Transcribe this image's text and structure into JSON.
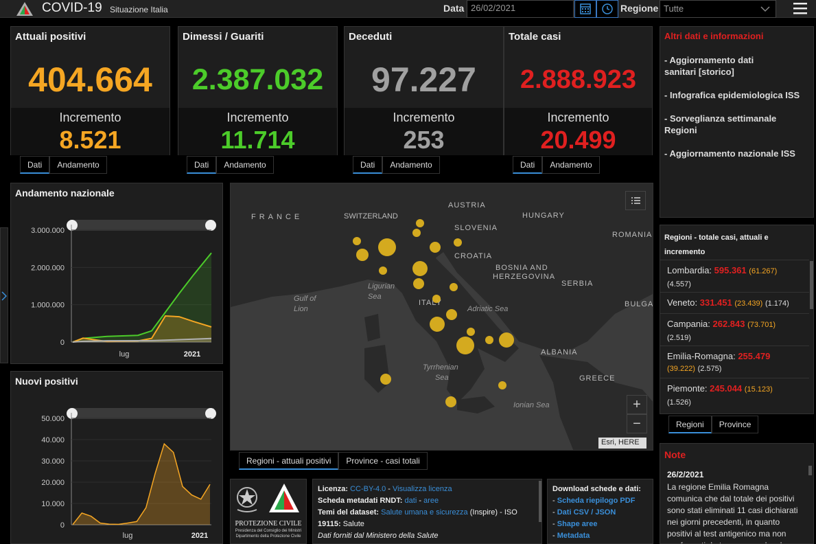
{
  "header": {
    "title": "COVID-19",
    "subtitle": "Situazione Italia",
    "date_label": "Data",
    "date_value": "26/02/2021",
    "region_label": "Regione",
    "region_value": "Tutte"
  },
  "cards": [
    {
      "title": "Attuali positivi",
      "value": "404.664",
      "inc_label": "Incremento",
      "inc_value": "8.521",
      "color": "#f5a623"
    },
    {
      "title": "Dimessi / Guariti",
      "value": "2.387.032",
      "inc_label": "Incremento",
      "inc_value": "11.714",
      "color": "#4ccc2a"
    },
    {
      "title": "Deceduti",
      "value": "97.227",
      "inc_label": "Incremento",
      "inc_value": "253",
      "color": "#a0a0a0"
    },
    {
      "title": "Totale casi",
      "value": "2.888.923",
      "inc_label": "Incremento",
      "inc_value": "20.499",
      "color": "#e02020"
    }
  ],
  "card_tabs": {
    "dati": "Dati",
    "andamento": "Andamento"
  },
  "andamento": {
    "title": "Andamento nazionale",
    "y_ticks": [
      "3.000.000",
      "2.000.000",
      "1.000.000",
      "0"
    ],
    "x_ticks": [
      "lug",
      "2021"
    ]
  },
  "nuovi": {
    "title": "Nuovi positivi",
    "y_ticks": [
      "50.000",
      "40.000",
      "30.000",
      "20.000",
      "10.000",
      "0"
    ],
    "x_ticks": [
      "lug",
      "2021"
    ]
  },
  "map": {
    "labels": [
      "FRANCE",
      "SWITZERLAND",
      "AUSTRIA",
      "HUNGARY",
      "SLOVENIA",
      "CROATIA",
      "ROMANIA",
      "BOSNIA AND",
      "HERZEGOVINA",
      "SERBIA",
      "ITALY",
      "BULGA",
      "ALBANIA",
      "GREECE"
    ],
    "seas": [
      "Ligurian",
      "Sea",
      "Gulf of",
      "Lion",
      "Adriatic Sea",
      "Tyrrhenian",
      "Sea",
      "Ionian Sea"
    ],
    "attribution": "Esri, HERE",
    "zoom_in": "+",
    "zoom_out": "−"
  },
  "map_tabs": {
    "regioni": "Regioni - attuali positivi",
    "province": "Province - casi totali"
  },
  "side_links": {
    "title": "Altri dati e informazioni",
    "items": [
      "- Aggiornamento dati sanitari [storico]",
      "- Infografica epidemiologica ISS",
      "- Sorveglianza settimanale Regioni",
      "- Aggiornamento nazionale ISS"
    ]
  },
  "regions": {
    "title": "Regioni - totale casi, attuali e incremento",
    "rows": [
      {
        "name": "Lombardia:",
        "total": "595.361",
        "attuali": "(61.267)",
        "inc": "(4.557)"
      },
      {
        "name": "Veneto:",
        "total": "331.451",
        "attuali": "(23.439)",
        "inc": "(1.174)"
      },
      {
        "name": "Campania:",
        "total": "262.843",
        "attuali": "(73.701)",
        "inc": "(2.519)"
      },
      {
        "name": "Emilia-Romagna:",
        "total": "255.479",
        "attuali": "(39.222)",
        "inc": "(2.575)"
      },
      {
        "name": "Piemonte:",
        "total": "245.044",
        "attuali": "(15.123)",
        "inc": "(1.526)"
      }
    ],
    "tab_regioni": "Regioni",
    "tab_province": "Province"
  },
  "note": {
    "title": "Note",
    "date": "26/2/2021",
    "text": "La regione Emilia Romagna comunica che dal totale dei positivi sono stati eliminati 11 casi dichiarati nei giorni precedenti, in quanto positivi al test antigenico ma non confermati da tampone molecolare."
  },
  "protezione": {
    "line1": "PROTEZIONE CIVILE",
    "line2": "Presidenza del Consiglio dei Ministri",
    "line3": "Dipartimento della Protezione Civile"
  },
  "license": {
    "l1_label": "Licenza:",
    "l1_link1": "CC-BY-4.0",
    "l1_sep": " - ",
    "l1_link2": "Visualizza licenza",
    "l2_label": "Scheda metadati RNDT:",
    "l2_link1": "dati",
    "l2_sep": " - ",
    "l2_link2": "aree",
    "l3_label": "Temi del dataset:",
    "l3_link": "Salute umana e sicurezza",
    "l3_rest": " (Inspire) - ISO",
    "l4_label": "19115:",
    "l4_rest": " Salute",
    "l5": "Dati forniti dal Ministero della Salute"
  },
  "downloads": {
    "title": "Download schede e dati:",
    "items": [
      "Scheda riepilogo PDF",
      "Dati CSV / JSON",
      "Shape aree",
      "Metadata"
    ]
  },
  "chart_data": [
    {
      "type": "line",
      "title": "Andamento nazionale",
      "ylim": [
        0,
        3000000
      ],
      "x": [
        "2020-02",
        "2020-04",
        "2020-07",
        "2020-09",
        "2020-10",
        "2020-11",
        "2020-12",
        "2021-01",
        "2021-02"
      ],
      "series": [
        {
          "values": [
            0,
            100000,
            150000,
            180000,
            300000,
            800000,
            1300000,
            1800000,
            2387032
          ]
        },
        {
          "values": [
            0,
            105000,
            14000,
            30000,
            100000,
            700000,
            680000,
            550000,
            404664
          ]
        },
        {
          "values": [
            0,
            20000,
            35000,
            36000,
            38000,
            50000,
            65000,
            80000,
            97227
          ]
        }
      ]
    },
    {
      "type": "bar",
      "title": "Nuovi positivi",
      "ylim": [
        0,
        50000
      ],
      "x": [
        "2020-02",
        "2020-03",
        "2020-04",
        "2020-05",
        "2020-06",
        "2020-07",
        "2020-08",
        "2020-09",
        "2020-10",
        "2020-10",
        "2020-11",
        "2020-11",
        "2020-12",
        "2020-12",
        "2021-01",
        "2021-02"
      ],
      "values": [
        100,
        5500,
        4000,
        800,
        300,
        200,
        800,
        1500,
        8000,
        24000,
        38000,
        34000,
        18000,
        14000,
        12000,
        19000
      ]
    }
  ]
}
